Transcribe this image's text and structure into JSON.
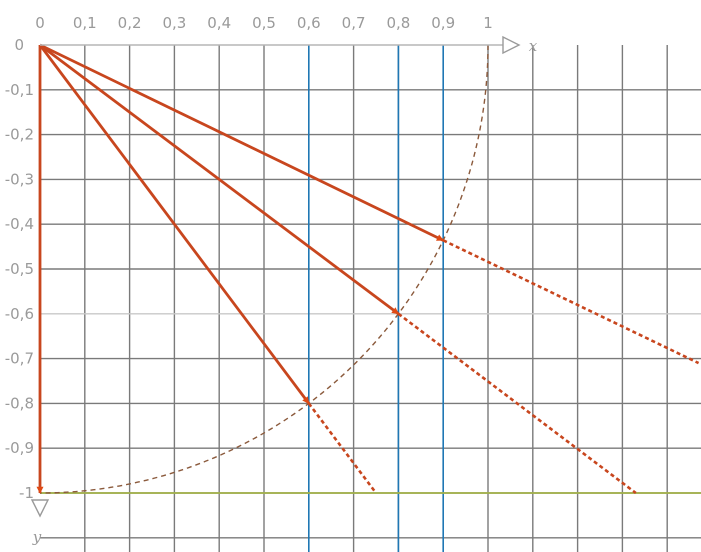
{
  "chart_data": {
    "type": "diagram",
    "axes": {
      "x": {
        "name": "x",
        "tick_labels": [
          "0",
          "0,1",
          "0,2",
          "0,3",
          "0,4",
          "0,5",
          "0,6",
          "0,7",
          "0,8",
          "0,9",
          "1"
        ],
        "range": [
          0,
          1.47
        ],
        "grid_step": 0.1
      },
      "y": {
        "name": "y",
        "origin_label": "0",
        "tick_labels": [
          "-0,1",
          "-0,2",
          "-0,3",
          "-0,4",
          "-0,5",
          "-0,6",
          "-0,7",
          "-0,8",
          "-0,9",
          "-1"
        ],
        "range": [
          0,
          -1.1
        ],
        "grid_step": 0.1
      }
    },
    "grid": true,
    "highlight_lines": {
      "vertical_x": [
        0.6,
        0.8,
        0.9
      ],
      "horizontal_y": [
        -1
      ],
      "light_horizontal_y": [
        -0.6
      ]
    },
    "curve": {
      "type": "quarter-circle",
      "center": [
        0,
        0
      ],
      "radius": 1,
      "style": "dashed",
      "color": "#8b5a3c"
    },
    "vectors": [
      {
        "from": [
          0,
          0
        ],
        "to": [
          0.9,
          -0.436
        ]
      },
      {
        "from": [
          0,
          0
        ],
        "to": [
          0.8,
          -0.6
        ]
      },
      {
        "from": [
          0,
          0
        ],
        "to": [
          0.6,
          -0.8
        ]
      },
      {
        "from": [
          0,
          0
        ],
        "to": [
          0,
          -1
        ]
      }
    ],
    "dashed_continuations": [
      {
        "from": [
          0.9,
          -0.436
        ],
        "to": [
          1.47,
          -0.71
        ]
      },
      {
        "from": [
          0.8,
          -0.6
        ],
        "to": [
          1.33,
          -1
        ]
      },
      {
        "from": [
          0.6,
          -0.8
        ],
        "to": [
          0.75,
          -1
        ]
      }
    ],
    "colors": {
      "grid": "#7a7a7a",
      "grid_light": "#c8c8c8",
      "vertical_highlight": "#1f77b4",
      "horizontal_highlight": "#a4b34a",
      "vector": "#c8461e",
      "arrowhead": "#e04a14",
      "axis_label": "#9a9a9a"
    }
  }
}
